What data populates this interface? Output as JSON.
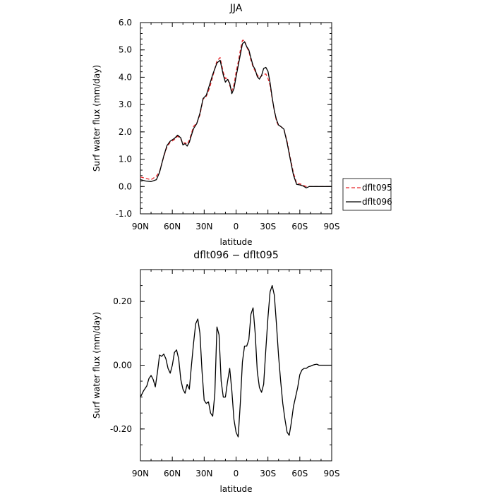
{
  "chart_data": [
    {
      "type": "line",
      "title": "JJA",
      "xlabel": "latitude",
      "ylabel": "Surf water flux (mm/day)",
      "xlim": [
        90,
        -90
      ],
      "ylim": [
        -1.0,
        6.0
      ],
      "x_ticks": [
        90,
        60,
        30,
        0,
        -30,
        -60,
        -90
      ],
      "x_tick_labels": [
        "90N",
        "60N",
        "30N",
        "0",
        "30S",
        "60S",
        "90S"
      ],
      "y_ticks": [
        -1.0,
        0.0,
        1.0,
        2.0,
        3.0,
        4.0,
        5.0,
        6.0
      ],
      "y_tick_labels": [
        "-1.0",
        "0.0",
        "1.0",
        "2.0",
        "3.0",
        "4.0",
        "5.0",
        "6.0"
      ],
      "legend": "outside-right",
      "series": [
        {
          "name": "dflt095",
          "color": "#e8262a",
          "dash": "dashed",
          "x": [
            90,
            85,
            80,
            75,
            72,
            68,
            65,
            62,
            58,
            55,
            52,
            50,
            48,
            46,
            44,
            42,
            40,
            37,
            34,
            31,
            28,
            25,
            22,
            18,
            15,
            12,
            10,
            8,
            6,
            4,
            2,
            0,
            -2,
            -4,
            -6,
            -8,
            -10,
            -12,
            -14,
            -16,
            -18,
            -20,
            -22,
            -24,
            -26,
            -28,
            -30,
            -32,
            -34,
            -36,
            -38,
            -40,
            -42,
            -45,
            -48,
            -51,
            -54,
            -57,
            -60,
            -63,
            -66,
            -69,
            -72,
            -76,
            -80,
            -85,
            -90
          ],
          "y": [
            0.35,
            0.3,
            0.25,
            0.38,
            0.55,
            1.1,
            1.45,
            1.62,
            1.72,
            1.84,
            1.74,
            1.58,
            1.6,
            1.55,
            1.7,
            1.95,
            2.2,
            2.32,
            2.62,
            3.2,
            3.3,
            3.6,
            4.02,
            4.6,
            4.72,
            4.18,
            3.95,
            3.98,
            3.7,
            3.5,
            3.72,
            4.18,
            4.55,
            4.98,
            5.35,
            5.35,
            5.1,
            4.95,
            4.62,
            4.38,
            4.22,
            4.08,
            3.98,
            4.05,
            4.1,
            4.12,
            3.96,
            3.7,
            3.22,
            2.78,
            2.4,
            2.22,
            2.2,
            2.1,
            1.65,
            1.05,
            0.5,
            0.12,
            0.1,
            0.05,
            0.0,
            0.0,
            0.0,
            0.0,
            0.0,
            0.0,
            0.0
          ]
        },
        {
          "name": "dflt096",
          "color": "#000000",
          "dash": "solid",
          "x": [
            90,
            85,
            80,
            75,
            72,
            68,
            65,
            62,
            58,
            55,
            52,
            50,
            48,
            46,
            44,
            42,
            40,
            37,
            34,
            31,
            28,
            25,
            22,
            18,
            15,
            12,
            10,
            8,
            6,
            4,
            2,
            0,
            -2,
            -4,
            -6,
            -8,
            -10,
            -12,
            -14,
            -16,
            -18,
            -20,
            -22,
            -24,
            -26,
            -28,
            -30,
            -32,
            -34,
            -36,
            -38,
            -40,
            -42,
            -45,
            -48,
            -51,
            -54,
            -57,
            -60,
            -63,
            -66,
            -69,
            -72,
            -76,
            -80,
            -85,
            -90
          ],
          "y": [
            0.25,
            0.2,
            0.18,
            0.25,
            0.52,
            1.12,
            1.5,
            1.66,
            1.76,
            1.88,
            1.78,
            1.52,
            1.57,
            1.48,
            1.62,
            1.88,
            2.12,
            2.3,
            2.68,
            3.22,
            3.34,
            3.72,
            4.1,
            4.52,
            4.62,
            4.08,
            3.82,
            3.92,
            3.78,
            3.4,
            3.58,
            4.02,
            4.42,
            4.82,
            5.22,
            5.3,
            5.12,
            5.0,
            4.7,
            4.42,
            4.28,
            4.02,
            3.93,
            4.06,
            4.32,
            4.36,
            4.22,
            3.8,
            3.25,
            2.78,
            2.45,
            2.25,
            2.2,
            2.1,
            1.6,
            1.0,
            0.42,
            0.08,
            0.06,
            0.02,
            -0.05,
            0.0,
            0.0,
            0.0,
            0.0,
            0.0,
            0.0
          ]
        }
      ]
    },
    {
      "type": "line",
      "title": "dflt096 − dflt095",
      "xlabel": "latitude",
      "ylabel": "Surf water flux (mm/day)",
      "xlim": [
        90,
        -90
      ],
      "ylim": [
        -0.3,
        0.3
      ],
      "x_ticks": [
        90,
        60,
        30,
        0,
        -30,
        -60,
        -90
      ],
      "x_tick_labels": [
        "90N",
        "60N",
        "30N",
        "0",
        "30S",
        "60S",
        "90S"
      ],
      "y_ticks": [
        -0.2,
        0.0,
        0.2
      ],
      "y_tick_labels": [
        "-0.20",
        "0.00",
        "0.20"
      ],
      "series": [
        {
          "color": "#000000",
          "dash": "solid",
          "x": [
            90,
            87,
            84,
            82,
            80,
            78,
            76,
            74,
            72,
            70,
            68,
            66,
            64,
            62,
            60,
            58,
            56,
            54,
            52,
            50,
            48,
            46,
            44,
            42,
            40,
            38,
            36,
            34,
            32,
            30,
            28,
            26,
            24,
            22,
            20,
            18,
            16,
            14,
            12,
            10,
            8,
            6,
            4,
            2,
            0,
            -2,
            -4,
            -6,
            -8,
            -10,
            -12,
            -14,
            -16,
            -18,
            -20,
            -22,
            -24,
            -26,
            -28,
            -30,
            -32,
            -34,
            -36,
            -38,
            -40,
            -42,
            -44,
            -46,
            -48,
            -50,
            -52,
            -54,
            -56,
            -58,
            -60,
            -62,
            -64,
            -66,
            -68,
            -70,
            -72,
            -74,
            -76,
            -78,
            -80,
            -82,
            -84,
            -86,
            -88,
            -90
          ],
          "y": [
            -0.1,
            -0.08,
            -0.065,
            -0.042,
            -0.032,
            -0.045,
            -0.068,
            -0.022,
            0.032,
            0.028,
            0.035,
            0.02,
            -0.01,
            -0.025,
            0.0,
            0.04,
            0.048,
            0.02,
            -0.045,
            -0.075,
            -0.088,
            -0.06,
            -0.075,
            0.0,
            0.07,
            0.13,
            0.145,
            0.1,
            -0.02,
            -0.11,
            -0.12,
            -0.115,
            -0.15,
            -0.16,
            -0.09,
            0.12,
            0.095,
            -0.05,
            -0.1,
            -0.1,
            -0.05,
            -0.01,
            -0.08,
            -0.17,
            -0.21,
            -0.225,
            -0.12,
            0.01,
            0.06,
            0.06,
            0.08,
            0.16,
            0.18,
            0.1,
            -0.02,
            -0.07,
            -0.085,
            -0.06,
            0.05,
            0.15,
            0.23,
            0.25,
            0.22,
            0.13,
            0.03,
            -0.05,
            -0.12,
            -0.17,
            -0.21,
            -0.22,
            -0.18,
            -0.13,
            -0.1,
            -0.07,
            -0.03,
            -0.015,
            -0.01,
            -0.01,
            -0.005,
            -0.003,
            0.0,
            0.002,
            0.003,
            0.0,
            0.0,
            0.0,
            0.0,
            0.0,
            0.0,
            0.0
          ]
        }
      ]
    }
  ]
}
